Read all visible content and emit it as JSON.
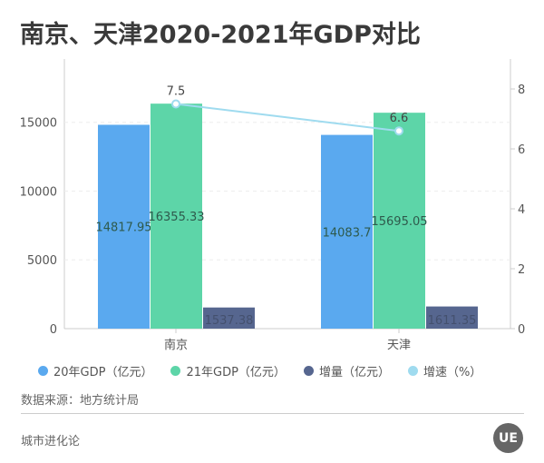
{
  "chart_data": {
    "type": "bar",
    "title": "南京、天津2020-2021年GDP对比",
    "categories": [
      "南京",
      "天津"
    ],
    "series": [
      {
        "name": "20年GDP（亿元）",
        "values": [
          14817.95,
          14083.7
        ],
        "labels": [
          "14817.95",
          "14083.7"
        ],
        "color": "#5aa9ef",
        "axis": "left",
        "kind": "bar"
      },
      {
        "name": "21年GDP（亿元）",
        "values": [
          16355.33,
          15695.05
        ],
        "labels": [
          "16355.33",
          "15695.05"
        ],
        "color": "#5dd5a8",
        "axis": "left",
        "kind": "bar"
      },
      {
        "name": "增量（亿元）",
        "values": [
          1537.38,
          1611.35
        ],
        "labels": [
          "1537.38",
          "1611.35"
        ],
        "color": "#56668f",
        "axis": "right-none",
        "kind": "bar"
      },
      {
        "name": "增速（%）",
        "values": [
          7.5,
          6.6
        ],
        "labels": [
          "7.5",
          "6.6"
        ],
        "color": "#9fdbef",
        "axis": "right",
        "kind": "line"
      }
    ],
    "left_axis": {
      "ticks": [
        "0",
        "5000",
        "10000",
        "15000"
      ],
      "ylim": [
        0,
        19600
      ]
    },
    "right_axis": {
      "ticks": [
        "0",
        "2",
        "4",
        "6",
        "8"
      ],
      "ylim": [
        0,
        9
      ]
    },
    "grid": "dashed horizontal",
    "legend": "bottom"
  },
  "source": "数据来源：地方统计局",
  "footer": "城市进化论",
  "logo_text": "UE"
}
